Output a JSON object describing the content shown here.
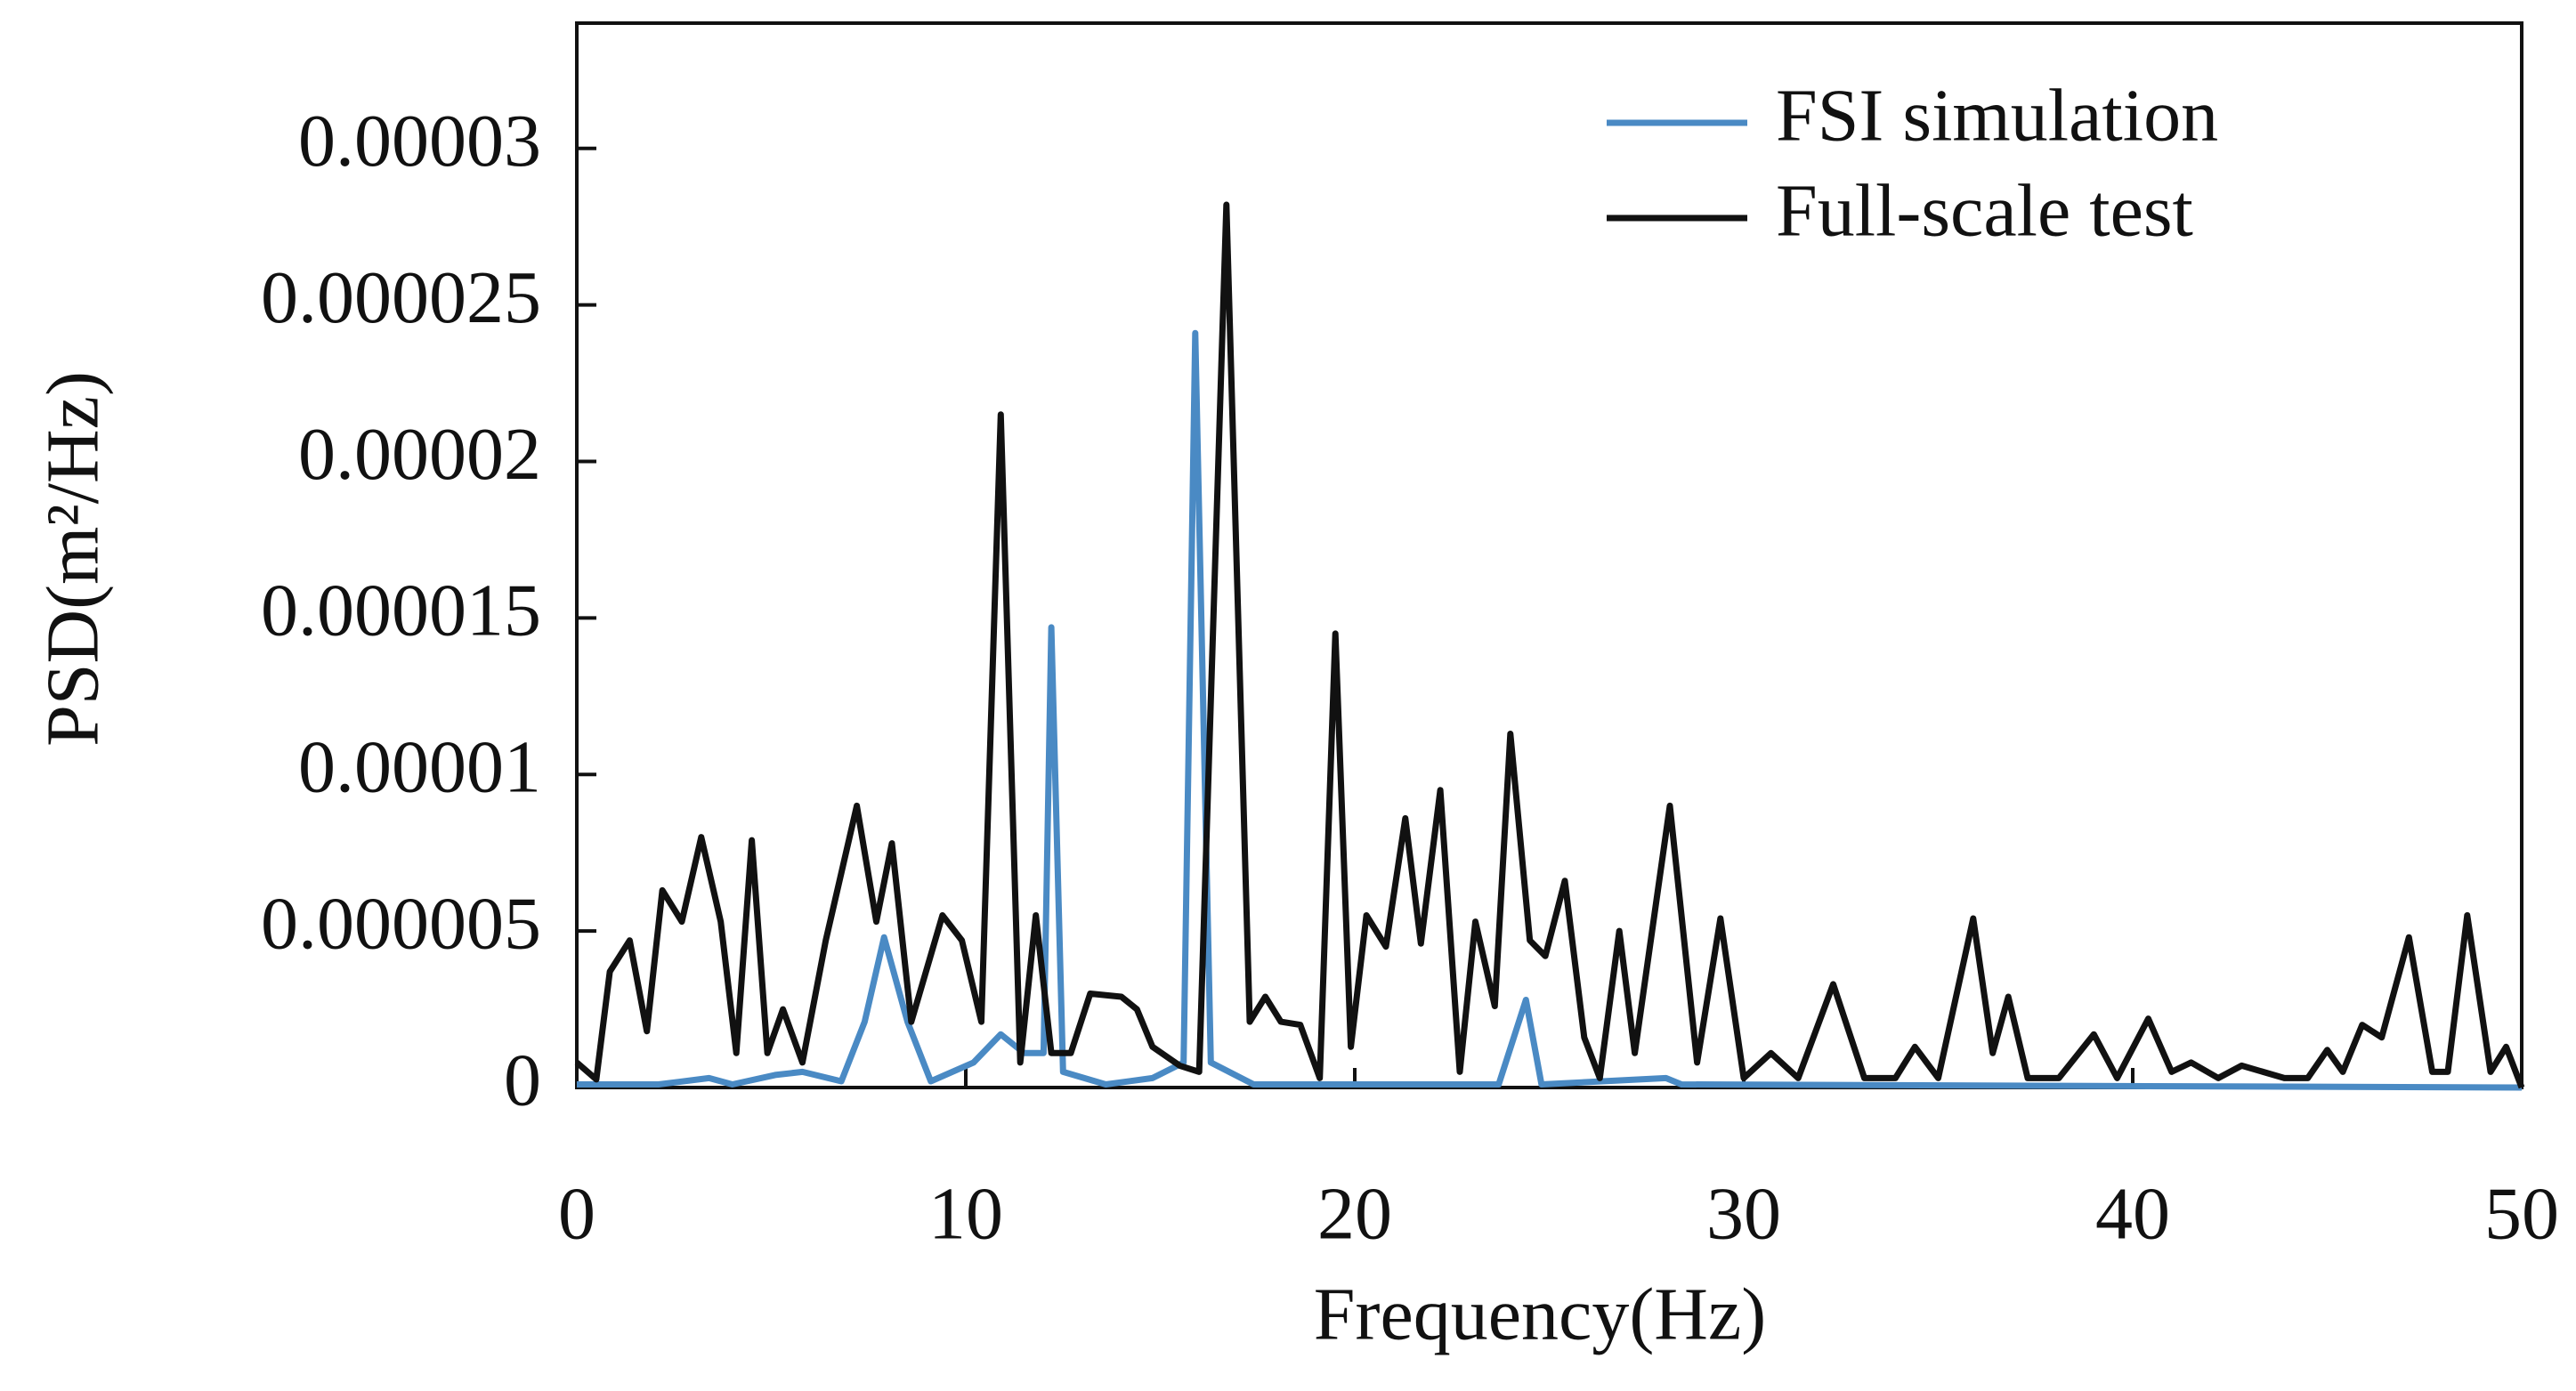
{
  "chart_data": {
    "type": "line",
    "x_label": "Frequency(Hz)",
    "y_label": "PSD(m²/Hz)",
    "xlim": [
      0,
      50
    ],
    "xticks": [
      0,
      10,
      20,
      30,
      40,
      50
    ],
    "ylim": [
      0,
      3.4e-05
    ],
    "yticks": [
      0,
      5e-06,
      1e-05,
      1.5e-05,
      2e-05,
      2.5e-05,
      3e-05
    ],
    "legend": "upper right",
    "series": [
      {
        "name": "FSI simulation",
        "color": "#4a8ac4",
        "x": [
          0,
          2.1,
          3.4,
          4,
          5.1,
          5.8,
          6.8,
          7.4,
          7.9,
          8.5,
          9.1,
          10.2,
          10.9,
          11.5,
          12.0,
          12.2,
          12.5,
          13.6,
          14.8,
          15.6,
          15.9,
          16.3,
          17.4,
          23.7,
          24.4,
          24.8,
          28,
          28.4,
          50
        ],
        "values": [
          1e-07,
          1e-07,
          3e-07,
          1e-07,
          4e-07,
          5e-07,
          2e-07,
          2.1e-06,
          4.8e-06,
          2.1e-06,
          2e-07,
          8e-07,
          1.7e-06,
          1.1e-06,
          1.1e-06,
          1.47e-05,
          5e-07,
          1e-07,
          3e-07,
          8e-07,
          2.41e-05,
          8e-07,
          1e-07,
          1e-07,
          2.8e-06,
          1e-07,
          3e-07,
          1e-07,
          0
        ]
      },
      {
        "name": "Full-scale test",
        "color": "#111111",
        "x": [
          0,
          0.5,
          0.85,
          1.36,
          1.8,
          2.2,
          2.7,
          3.2,
          3.7,
          4.1,
          4.5,
          4.9,
          5.3,
          5.8,
          6.4,
          7.2,
          7.7,
          8.1,
          8.6,
          9.4,
          9.9,
          10.4,
          10.9,
          11.4,
          11.8,
          12.2,
          12.7,
          13.2,
          14.0,
          14.4,
          14.8,
          15.5,
          16.0,
          16.7,
          17.3,
          17.7,
          18.1,
          18.6,
          19.1,
          19.5,
          19.9,
          20.3,
          20.8,
          21.3,
          21.7,
          22.2,
          22.7,
          23.1,
          23.6,
          24.0,
          24.5,
          24.9,
          25.4,
          25.9,
          26.3,
          26.8,
          27.2,
          28.1,
          28.8,
          29.4,
          30.0,
          30.7,
          31.4,
          32.3,
          33.1,
          33.9,
          34.4,
          35.0,
          35.9,
          36.4,
          36.8,
          37.3,
          38.1,
          39.0,
          39.6,
          40.4,
          41.0,
          41.5,
          42.2,
          42.8,
          43.9,
          44.5,
          45.0,
          45.4,
          45.9,
          46.4,
          47.1,
          47.7,
          48.1,
          48.6,
          49.2,
          49.6,
          50
        ],
        "values": [
          8e-07,
          2.6e-07,
          3.7e-06,
          4.7e-06,
          1.8e-06,
          6.3e-06,
          5.3e-06,
          8e-06,
          5.3e-06,
          1.1e-06,
          7.9e-06,
          1.1e-06,
          2.5e-06,
          8e-07,
          4.7e-06,
          9e-06,
          5.3e-06,
          7.8e-06,
          2.1e-06,
          5.5e-06,
          4.7e-06,
          2.1e-06,
          2.15e-05,
          8e-07,
          5.5e-06,
          1.1e-06,
          1.1e-06,
          3e-06,
          2.9e-06,
          2.5e-06,
          1.3e-06,
          7e-07,
          5e-07,
          2.82e-05,
          2.1e-06,
          2.9e-06,
          2.1e-06,
          2e-06,
          3e-07,
          1.45e-05,
          1.3e-06,
          5.5e-06,
          4.5e-06,
          8.6e-06,
          4.6e-06,
          9.5e-06,
          5e-07,
          5.3e-06,
          2.6e-06,
          1.13e-05,
          4.7e-06,
          4.2e-06,
          6.6e-06,
          1.6e-06,
          3e-07,
          5e-06,
          1.1e-06,
          9e-06,
          8e-07,
          5.4e-06,
          3e-07,
          1.1e-06,
          3e-07,
          3.3e-06,
          3e-07,
          3e-07,
          1.3e-06,
          3e-07,
          5.4e-06,
          1.1e-06,
          2.9e-06,
          3e-07,
          3e-07,
          1.7e-06,
          3e-07,
          2.2e-06,
          5e-07,
          8e-07,
          3e-07,
          7e-07,
          3e-07,
          3e-07,
          1.2e-06,
          5e-07,
          2e-06,
          1.6e-06,
          4.8e-06,
          5e-07,
          5e-07,
          5.5e-06,
          5e-07,
          1.3e-06,
          0
        ]
      }
    ]
  }
}
